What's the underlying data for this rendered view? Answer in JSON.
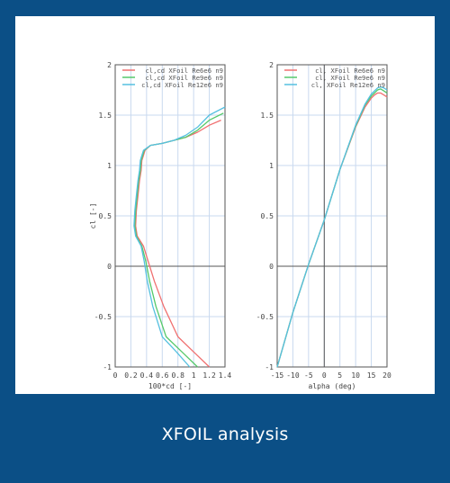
{
  "caption": "XFOIL analysis",
  "colors": {
    "frame": "#0b4f86",
    "series": [
      "#f07070",
      "#55c96a",
      "#55c0e0"
    ],
    "grid": "#c9d9ef"
  },
  "chart_data": [
    {
      "type": "line",
      "xlabel": "100*cd [-]",
      "ylabel": "cl [-]",
      "xlim": [
        0,
        1.4
      ],
      "ylim": [
        -1,
        2
      ],
      "xticks": [
        "0",
        "0.2",
        "0.4",
        "0.6",
        "0.8",
        "1",
        "1.2",
        "1.4"
      ],
      "yticks": [
        "-1",
        "-0.5",
        "0",
        "0.5",
        "1",
        "1.5",
        "2"
      ],
      "legend_position": "top-right",
      "grid": true,
      "series": [
        {
          "name": "cl,cd XFoil Re6e6 n9",
          "x": [
            1.2,
            1.0,
            0.8,
            0.62,
            0.5,
            0.42,
            0.36,
            0.28,
            0.26,
            0.27,
            0.29,
            0.31,
            0.33,
            0.34,
            0.36,
            0.38,
            0.45,
            0.6,
            0.75,
            0.9,
            1.05,
            1.2,
            1.35
          ],
          "y": [
            -1.0,
            -0.85,
            -0.7,
            -0.4,
            -0.15,
            0.05,
            0.2,
            0.3,
            0.4,
            0.55,
            0.7,
            0.85,
            0.95,
            1.05,
            1.1,
            1.15,
            1.2,
            1.22,
            1.25,
            1.28,
            1.33,
            1.4,
            1.45
          ]
        },
        {
          "name": "cl,cd XFoil Re9e6 n9",
          "x": [
            1.05,
            0.85,
            0.65,
            0.52,
            0.44,
            0.39,
            0.34,
            0.27,
            0.25,
            0.26,
            0.28,
            0.3,
            0.32,
            0.33,
            0.35,
            0.37,
            0.45,
            0.6,
            0.75,
            0.9,
            1.05,
            1.2,
            1.38
          ],
          "y": [
            -1.0,
            -0.85,
            -0.7,
            -0.4,
            -0.15,
            0.05,
            0.2,
            0.3,
            0.4,
            0.55,
            0.7,
            0.85,
            0.95,
            1.05,
            1.1,
            1.15,
            1.2,
            1.22,
            1.25,
            1.28,
            1.35,
            1.45,
            1.52
          ]
        },
        {
          "name": "cl,cd XFoil Re12e6 n9",
          "x": [
            0.95,
            0.78,
            0.6,
            0.48,
            0.41,
            0.37,
            0.33,
            0.26,
            0.24,
            0.25,
            0.27,
            0.29,
            0.31,
            0.32,
            0.34,
            0.36,
            0.45,
            0.6,
            0.75,
            0.9,
            1.05,
            1.2,
            1.4
          ],
          "y": [
            -1.0,
            -0.85,
            -0.7,
            -0.4,
            -0.15,
            0.05,
            0.2,
            0.3,
            0.4,
            0.55,
            0.7,
            0.85,
            0.95,
            1.05,
            1.1,
            1.15,
            1.2,
            1.22,
            1.25,
            1.3,
            1.38,
            1.5,
            1.58
          ]
        }
      ]
    },
    {
      "type": "line",
      "xlabel": "alpha (deg)",
      "ylabel": "",
      "xlim": [
        -15,
        20
      ],
      "ylim": [
        -1,
        2
      ],
      "xticks": [
        "-15",
        "-10",
        "-5",
        "0",
        "5",
        "10",
        "15",
        "20"
      ],
      "yticks": [
        "-1",
        "-0.5",
        "0",
        "0.5",
        "1",
        "1.5",
        "2"
      ],
      "legend_position": "top-right",
      "grid": true,
      "series": [
        {
          "name": "cl, XFoil Re6e6 n9",
          "x": [
            -15,
            -10,
            -5,
            0,
            5,
            10,
            13,
            15,
            16,
            17,
            18,
            19,
            20
          ],
          "y": [
            -1.0,
            -0.46,
            0.02,
            0.46,
            0.96,
            1.38,
            1.58,
            1.67,
            1.7,
            1.72,
            1.72,
            1.7,
            1.68
          ]
        },
        {
          "name": "cl, XFoil Re9e6 n9",
          "x": [
            -15,
            -10,
            -5,
            0,
            5,
            10,
            13,
            15,
            16,
            17,
            18,
            19,
            20
          ],
          "y": [
            -1.0,
            -0.46,
            0.02,
            0.46,
            0.96,
            1.39,
            1.6,
            1.69,
            1.72,
            1.75,
            1.76,
            1.74,
            1.72
          ]
        },
        {
          "name": "cl, XFoil Re12e6 n9",
          "x": [
            -15,
            -10,
            -5,
            0,
            5,
            10,
            13,
            15,
            16,
            17,
            18,
            19,
            20
          ],
          "y": [
            -1.0,
            -0.46,
            0.02,
            0.46,
            0.96,
            1.4,
            1.61,
            1.71,
            1.74,
            1.77,
            1.78,
            1.77,
            1.75
          ]
        }
      ]
    }
  ]
}
